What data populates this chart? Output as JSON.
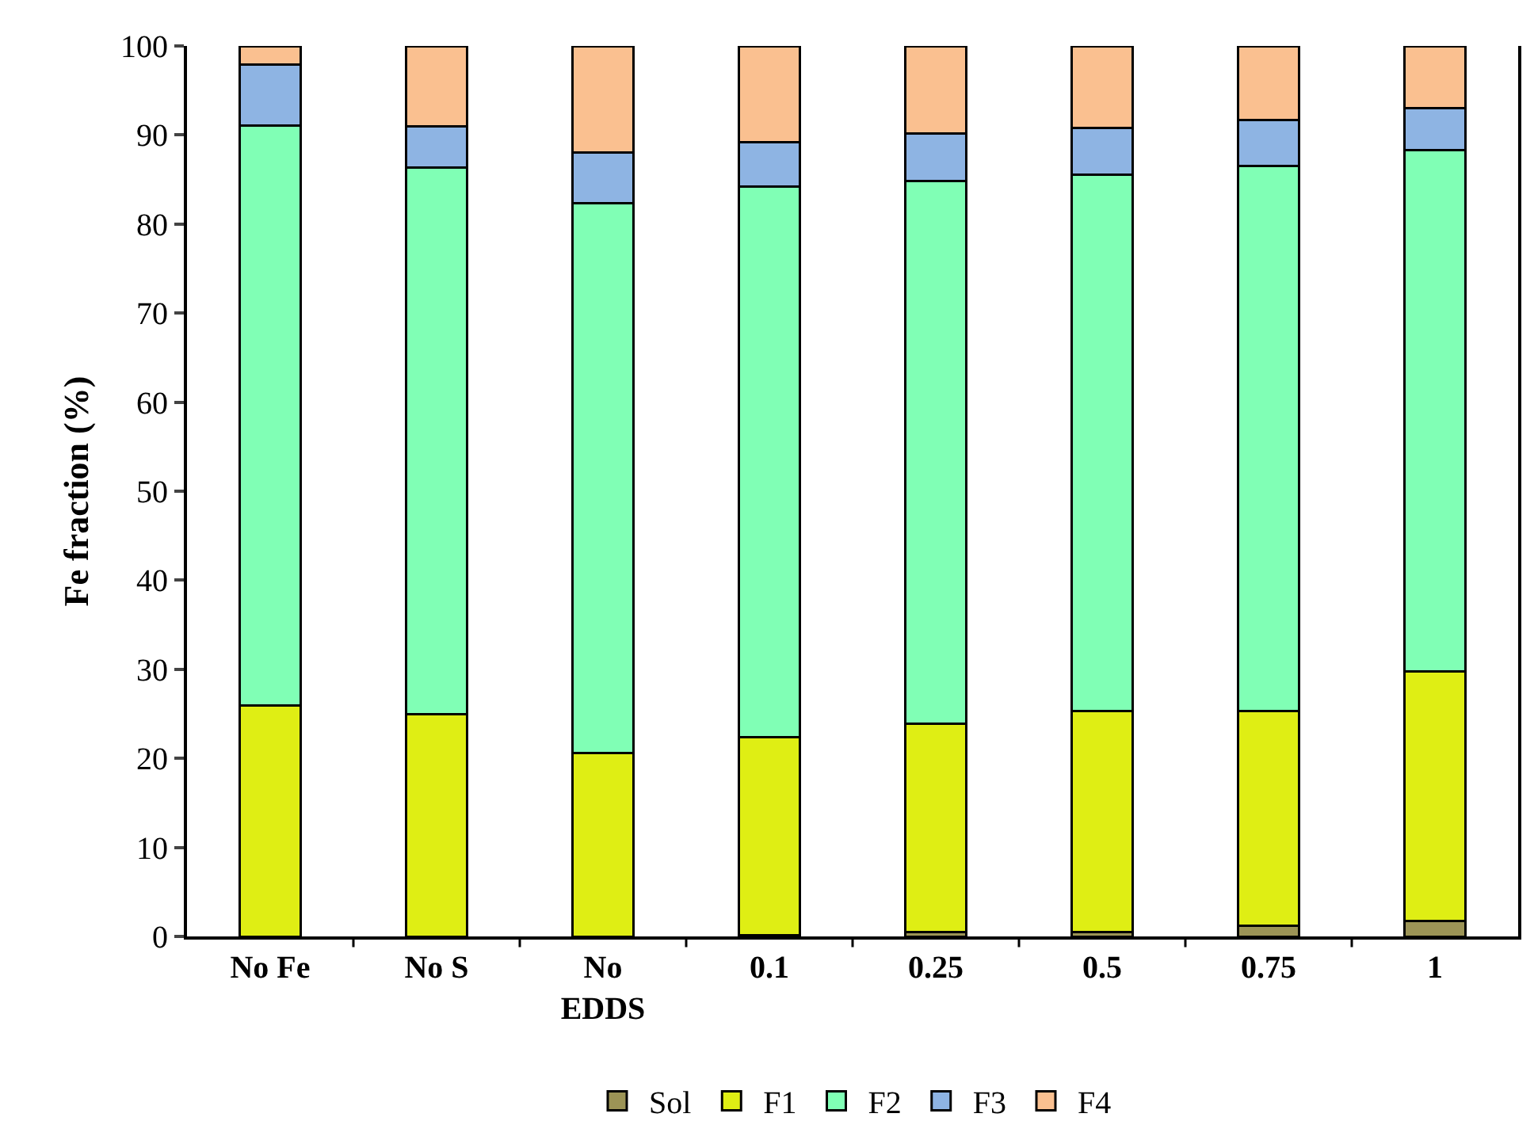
{
  "chart_data": {
    "type": "bar",
    "stacked": true,
    "ylabel": "Fe fraction (%)",
    "categories": [
      "No Fe",
      "No S",
      "No EDDS",
      "0.1",
      "0.25",
      "0.5",
      "0.75",
      "1"
    ],
    "series": [
      {
        "name": "Sol",
        "color": "#9c9456",
        "values": [
          0,
          0,
          0,
          0.1,
          0.5,
          0.5,
          1.2,
          1.7
        ]
      },
      {
        "name": "F1",
        "color": "#dfee14",
        "values": [
          25.9,
          25.0,
          20.6,
          22.3,
          23.4,
          24.8,
          24.1,
          28.1
        ]
      },
      {
        "name": "F2",
        "color": "#80ffb5",
        "values": [
          65.2,
          61.3,
          61.7,
          61.8,
          60.9,
          60.2,
          61.2,
          58.5
        ]
      },
      {
        "name": "F3",
        "color": "#8eb4e3",
        "values": [
          6.8,
          4.7,
          5.7,
          5.0,
          5.4,
          5.3,
          5.2,
          4.7
        ]
      },
      {
        "name": "F4",
        "color": "#fac090",
        "values": [
          2.1,
          9.0,
          12.0,
          10.8,
          9.8,
          9.2,
          8.3,
          7.0
        ]
      }
    ],
    "ylim": [
      0,
      100
    ],
    "yticks": [
      0,
      10,
      20,
      30,
      40,
      50,
      60,
      70,
      80,
      90,
      100
    ],
    "legend": "bottom"
  }
}
